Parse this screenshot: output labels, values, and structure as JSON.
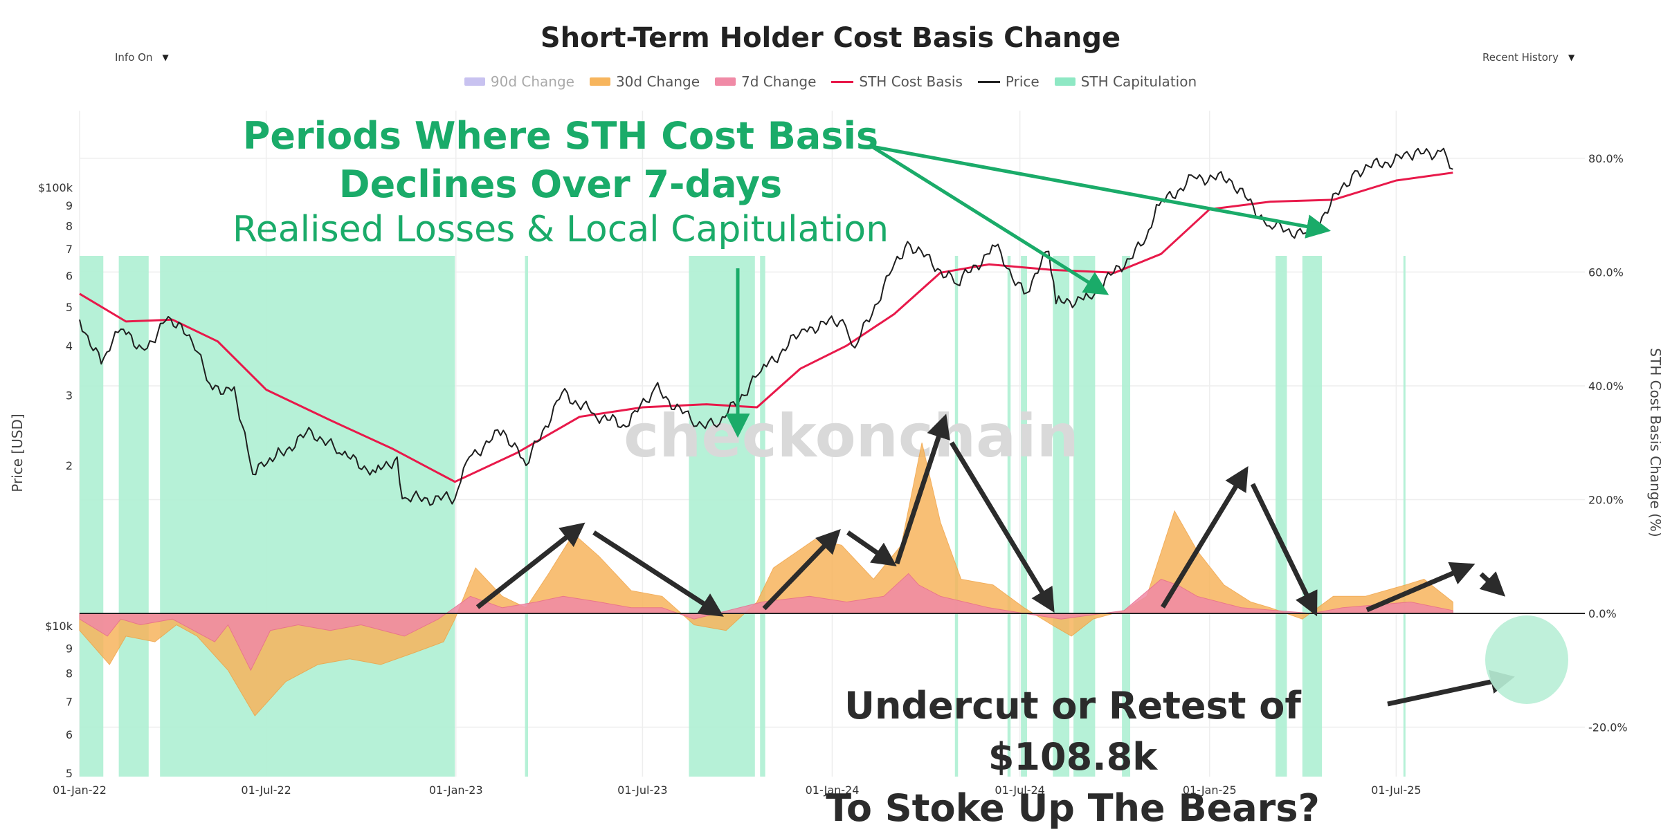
{
  "header": {
    "title": "Short-Term Holder Cost Basis Change",
    "left_dropdown": "Info On",
    "right_dropdown": "Recent History"
  },
  "legend": [
    {
      "label": "90d Change",
      "color": "#c8c2f0",
      "style": "box",
      "dim": true
    },
    {
      "label": "30d Change",
      "color": "#f7b55d",
      "style": "box",
      "dim": false
    },
    {
      "label": "7d Change",
      "color": "#f08aa6",
      "style": "box",
      "dim": false
    },
    {
      "label": "STH Cost Basis",
      "color": "#e8194a",
      "style": "line",
      "dim": false
    },
    {
      "label": "Price",
      "color": "#222222",
      "style": "line",
      "dim": false
    },
    {
      "label": "STH Capitulation",
      "color": "#8ee8c4",
      "style": "box",
      "dim": false
    }
  ],
  "annotations": {
    "green_line1": "Periods Where STH Cost Basis",
    "green_line2": "Declines Over 7-days",
    "green_line3": "Realised Losses & Local Capitulation",
    "dark_line1": "Undercut or Retest of $108.8k",
    "dark_line2": "To Stoke Up The Bears?"
  },
  "watermark": "checkonchain",
  "chart_data": {
    "type": "line",
    "xlabel": "",
    "x_ticks": [
      "01-Jan-22",
      "01-Jul-22",
      "01-Jan-23",
      "01-Jul-23",
      "01-Jan-24",
      "01-Jul-24",
      "01-Jan-25",
      "01-Jul-25"
    ],
    "y_left": {
      "label": "Price [USD]",
      "scale": "log",
      "upper_ticks": [
        "$100k",
        "9",
        "8",
        "7",
        "6",
        "5",
        "4",
        "3",
        "2"
      ],
      "lower_ticks": [
        "$10k",
        "9",
        "8",
        "7",
        "6",
        "5"
      ]
    },
    "y_right": {
      "label": "STH Cost Basis Change (%)",
      "ticks": [
        "80.0%",
        "60.0%",
        "40.0%",
        "20.0%",
        "0.0%",
        "-20.0%"
      ],
      "range": [
        -27,
        84
      ]
    },
    "series": [
      {
        "name": "Price",
        "unit": "USD",
        "points": [
          [
            "2022-01-01",
            46500
          ],
          [
            "2022-01-22",
            36000
          ],
          [
            "2022-02-10",
            44000
          ],
          [
            "2022-03-05",
            39000
          ],
          [
            "2022-03-28",
            47300
          ],
          [
            "2022-04-20",
            41000
          ],
          [
            "2022-05-10",
            31000
          ],
          [
            "2022-05-31",
            31500
          ],
          [
            "2022-06-18",
            19000
          ],
          [
            "2022-07-10",
            21000
          ],
          [
            "2022-08-14",
            24400
          ],
          [
            "2022-09-10",
            21500
          ],
          [
            "2022-10-15",
            19200
          ],
          [
            "2022-11-05",
            21000
          ],
          [
            "2022-11-10",
            16500
          ],
          [
            "2022-12-31",
            16500
          ],
          [
            "2023-01-14",
            21000
          ],
          [
            "2023-02-16",
            24500
          ],
          [
            "2023-03-10",
            20000
          ],
          [
            "2023-04-14",
            30500
          ],
          [
            "2023-05-15",
            27000
          ],
          [
            "2023-06-15",
            25000
          ],
          [
            "2023-07-13",
            31400
          ],
          [
            "2023-08-17",
            26000
          ],
          [
            "2023-09-11",
            25000
          ],
          [
            "2023-10-24",
            34500
          ],
          [
            "2023-12-05",
            44000
          ],
          [
            "2024-01-11",
            46500
          ],
          [
            "2024-01-23",
            39500
          ],
          [
            "2024-02-28",
            62000
          ],
          [
            "2024-03-14",
            73000
          ],
          [
            "2024-05-01",
            57000
          ],
          [
            "2024-06-07",
            71000
          ],
          [
            "2024-07-05",
            54000
          ],
          [
            "2024-07-29",
            69000
          ],
          [
            "2024-08-05",
            51000
          ],
          [
            "2024-09-06",
            53000
          ],
          [
            "2024-10-29",
            72000
          ],
          [
            "2024-11-13",
            90000
          ],
          [
            "2024-12-17",
            106000
          ],
          [
            "2025-01-20",
            105000
          ],
          [
            "2025-02-28",
            80000
          ],
          [
            "2025-04-07",
            76000
          ],
          [
            "2025-05-22",
            110000
          ],
          [
            "2025-07-14",
            120000
          ],
          [
            "2025-08-13",
            123000
          ],
          [
            "2025-08-25",
            111000
          ]
        ]
      },
      {
        "name": "STH Cost Basis",
        "unit": "USD",
        "points": [
          [
            "2022-01-01",
            54000
          ],
          [
            "2022-02-15",
            46000
          ],
          [
            "2022-04-01",
            46500
          ],
          [
            "2022-05-15",
            41000
          ],
          [
            "2022-07-01",
            31000
          ],
          [
            "2022-09-01",
            26000
          ],
          [
            "2022-11-01",
            22000
          ],
          [
            "2022-12-31",
            18200
          ],
          [
            "2023-03-01",
            21500
          ],
          [
            "2023-05-01",
            26500
          ],
          [
            "2023-07-01",
            28000
          ],
          [
            "2023-09-01",
            28500
          ],
          [
            "2023-10-20",
            28000
          ],
          [
            "2023-12-01",
            35000
          ],
          [
            "2024-01-15",
            40000
          ],
          [
            "2024-03-01",
            48000
          ],
          [
            "2024-04-15",
            61000
          ],
          [
            "2024-06-01",
            64000
          ],
          [
            "2024-08-01",
            62000
          ],
          [
            "2024-10-01",
            61000
          ],
          [
            "2024-11-15",
            68000
          ],
          [
            "2025-01-01",
            88000
          ],
          [
            "2025-03-01",
            92000
          ],
          [
            "2025-05-01",
            93000
          ],
          [
            "2025-07-01",
            104000
          ],
          [
            "2025-08-25",
            108800
          ]
        ]
      },
      {
        "name": "30d Change",
        "unit": "%",
        "points": [
          [
            "2022-01-01",
            -3
          ],
          [
            "2022-01-30",
            -9
          ],
          [
            "2022-02-15",
            -4
          ],
          [
            "2022-03-15",
            -5
          ],
          [
            "2022-04-05",
            -2
          ],
          [
            "2022-04-25",
            -4
          ],
          [
            "2022-05-25",
            -10
          ],
          [
            "2022-06-20",
            -18
          ],
          [
            "2022-07-20",
            -12
          ],
          [
            "2022-08-20",
            -9
          ],
          [
            "2022-09-20",
            -8
          ],
          [
            "2022-10-20",
            -9
          ],
          [
            "2022-11-20",
            -7
          ],
          [
            "2022-12-20",
            -5
          ],
          [
            "2022-12-31",
            -1
          ],
          [
            "2023-01-20",
            8
          ],
          [
            "2023-02-15",
            3
          ],
          [
            "2023-03-10",
            1
          ],
          [
            "2023-04-01",
            7
          ],
          [
            "2023-04-25",
            14
          ],
          [
            "2023-05-20",
            10
          ],
          [
            "2023-06-20",
            4
          ],
          [
            "2023-07-20",
            3
          ],
          [
            "2023-08-20",
            -2
          ],
          [
            "2023-09-20",
            -3
          ],
          [
            "2023-10-20",
            2
          ],
          [
            "2023-11-05",
            8
          ],
          [
            "2023-12-15",
            13
          ],
          [
            "2024-01-10",
            12
          ],
          [
            "2024-02-10",
            6
          ],
          [
            "2024-03-08",
            12
          ],
          [
            "2024-03-28",
            30
          ],
          [
            "2024-04-15",
            16
          ],
          [
            "2024-05-05",
            6
          ],
          [
            "2024-06-05",
            5
          ],
          [
            "2024-07-05",
            1
          ],
          [
            "2024-08-01",
            -2
          ],
          [
            "2024-08-20",
            -4
          ],
          [
            "2024-09-10",
            -1
          ],
          [
            "2024-10-10",
            0.5
          ],
          [
            "2024-11-01",
            3
          ],
          [
            "2024-11-28",
            18
          ],
          [
            "2024-12-20",
            11
          ],
          [
            "2025-01-15",
            5
          ],
          [
            "2025-02-10",
            2
          ],
          [
            "2025-03-01",
            1
          ],
          [
            "2025-04-01",
            -1
          ],
          [
            "2025-05-01",
            3
          ],
          [
            "2025-06-01",
            3
          ],
          [
            "2025-07-10",
            5
          ],
          [
            "2025-07-28",
            6
          ],
          [
            "2025-08-25",
            2
          ]
        ]
      },
      {
        "name": "7d Change",
        "unit": "%",
        "points": [
          [
            "2022-01-01",
            -1
          ],
          [
            "2022-01-28",
            -4
          ],
          [
            "2022-02-10",
            -1
          ],
          [
            "2022-03-01",
            -2
          ],
          [
            "2022-04-01",
            -1
          ],
          [
            "2022-05-12",
            -5
          ],
          [
            "2022-05-25",
            -2
          ],
          [
            "2022-06-16",
            -10
          ],
          [
            "2022-07-05",
            -3
          ],
          [
            "2022-08-01",
            -2
          ],
          [
            "2022-09-01",
            -3
          ],
          [
            "2022-10-01",
            -2
          ],
          [
            "2022-11-12",
            -4
          ],
          [
            "2022-12-15",
            -1
          ],
          [
            "2023-01-15",
            3
          ],
          [
            "2023-02-15",
            1
          ],
          [
            "2023-03-20",
            2
          ],
          [
            "2023-04-15",
            3
          ],
          [
            "2023-05-20",
            2
          ],
          [
            "2023-06-20",
            1
          ],
          [
            "2023-07-20",
            1
          ],
          [
            "2023-08-20",
            -1
          ],
          [
            "2023-10-25",
            2
          ],
          [
            "2023-12-10",
            3
          ],
          [
            "2024-01-15",
            2
          ],
          [
            "2024-02-20",
            3
          ],
          [
            "2024-03-15",
            7
          ],
          [
            "2024-03-25",
            5
          ],
          [
            "2024-04-15",
            3
          ],
          [
            "2024-06-01",
            1
          ],
          [
            "2024-07-05",
            0
          ],
          [
            "2024-08-10",
            -1
          ],
          [
            "2024-10-10",
            0.5
          ],
          [
            "2024-11-15",
            6
          ],
          [
            "2024-12-01",
            5
          ],
          [
            "2024-12-20",
            3
          ],
          [
            "2025-02-01",
            1
          ],
          [
            "2025-04-10",
            0
          ],
          [
            "2025-05-10",
            1
          ],
          [
            "2025-07-15",
            2
          ],
          [
            "2025-08-25",
            0.5
          ]
        ]
      }
    ],
    "capitulation_periods": [
      [
        "2022-01-01",
        "2022-01-24"
      ],
      [
        "2022-02-08",
        "2022-03-09"
      ],
      [
        "2022-03-20",
        "2022-12-31"
      ],
      [
        "2023-03-09",
        "2023-03-12"
      ],
      [
        "2023-08-15",
        "2023-10-18"
      ],
      [
        "2023-10-23",
        "2023-10-28"
      ],
      [
        "2024-04-29",
        "2024-05-02"
      ],
      [
        "2024-06-19",
        "2024-06-22"
      ],
      [
        "2024-07-02",
        "2024-07-08"
      ],
      [
        "2024-08-02",
        "2024-08-18"
      ],
      [
        "2024-08-22",
        "2024-09-12"
      ],
      [
        "2024-10-08",
        "2024-10-16"
      ],
      [
        "2025-03-06",
        "2025-03-17"
      ],
      [
        "2025-04-01",
        "2025-04-20"
      ],
      [
        "2025-07-08",
        "2025-07-10"
      ]
    ],
    "grid": true
  }
}
